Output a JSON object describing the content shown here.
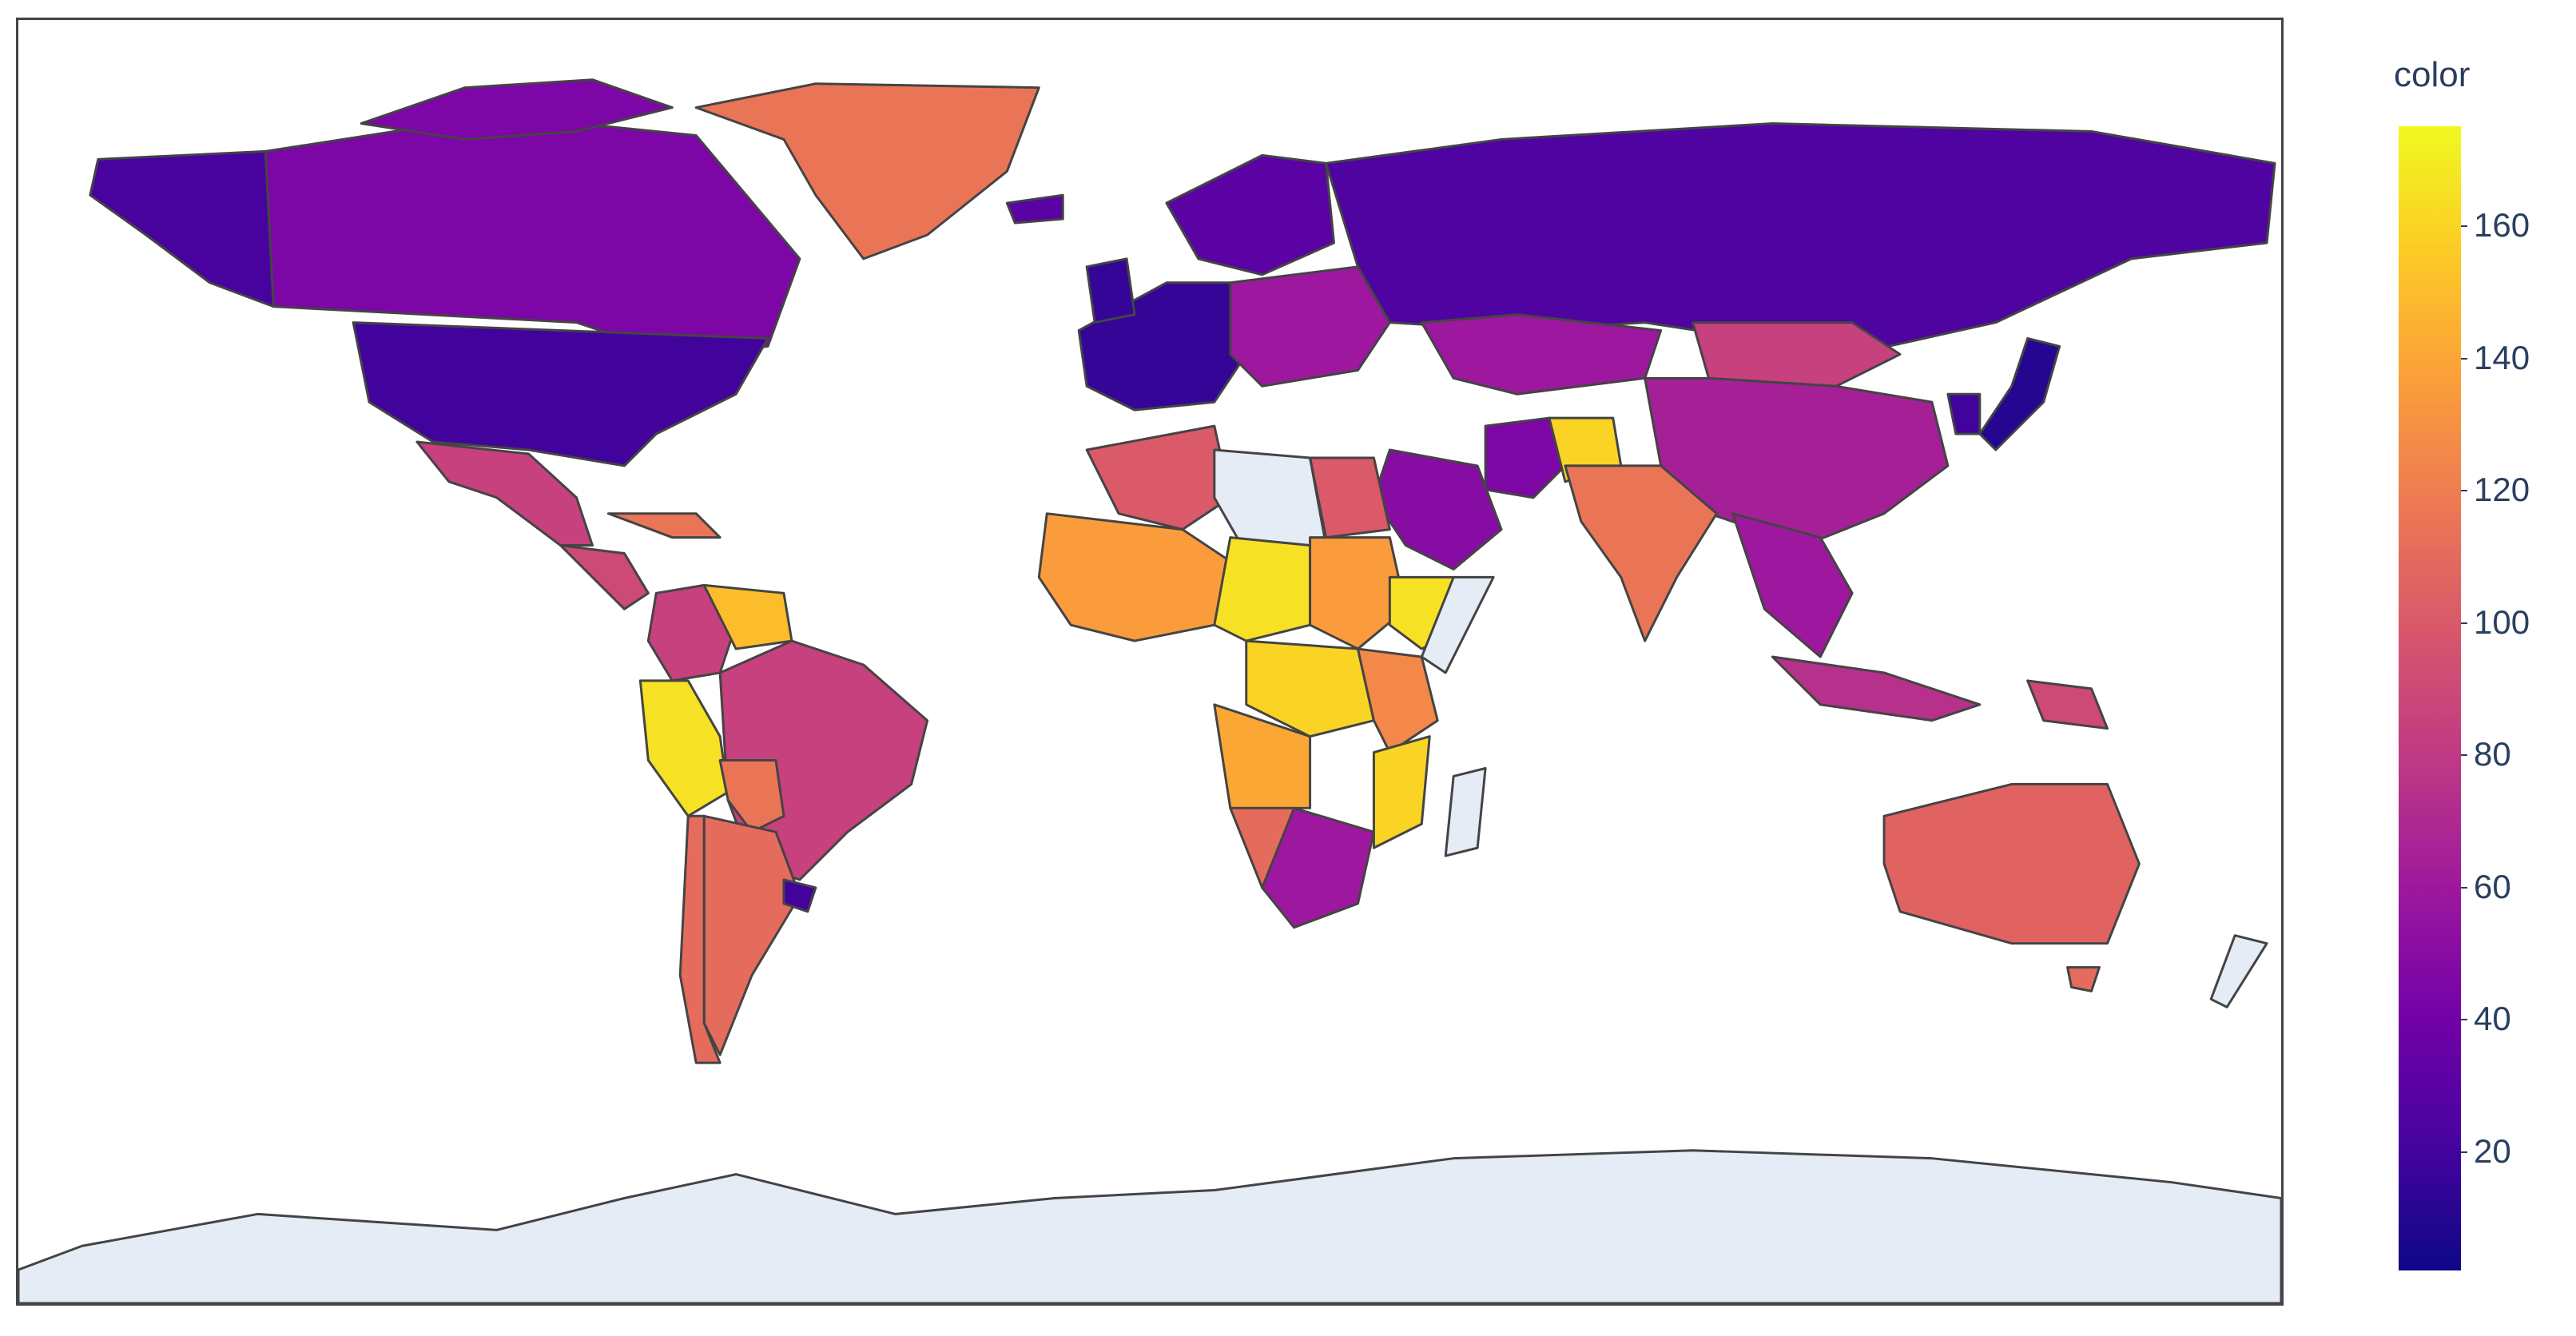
{
  "colorbar": {
    "title": "color",
    "ticks": [
      "160",
      "140",
      "120",
      "100",
      "80",
      "60",
      "40",
      "20"
    ],
    "tick_values": [
      160,
      140,
      120,
      100,
      80,
      60,
      40,
      20
    ],
    "range": [
      2,
      175
    ],
    "colorscale": [
      "#0d0887",
      "#46039f",
      "#7201a8",
      "#9c179e",
      "#bd3786",
      "#d8576b",
      "#ed7953",
      "#fb9f3a",
      "#fdca26",
      "#f0f921"
    ]
  },
  "map": {
    "type": "choropleth",
    "projection": "equirectangular",
    "no_data_color": "#e5ecf6",
    "border_color": "#444444",
    "regions": [
      {
        "name": "United States",
        "value": 20
      },
      {
        "name": "Canada",
        "value": 45
      },
      {
        "name": "Alaska",
        "value": 22
      },
      {
        "name": "Greenland",
        "value": 115
      },
      {
        "name": "Mexico",
        "value": 85
      },
      {
        "name": "Central America",
        "value": 90
      },
      {
        "name": "Colombia",
        "value": 85
      },
      {
        "name": "Venezuela",
        "value": 150
      },
      {
        "name": "Peru",
        "value": 165
      },
      {
        "name": "Brazil",
        "value": 85
      },
      {
        "name": "Bolivia",
        "value": 115
      },
      {
        "name": "Argentina",
        "value": 110
      },
      {
        "name": "Chile",
        "value": 110
      },
      {
        "name": "Uruguay",
        "value": 20
      },
      {
        "name": "Western Europe",
        "value": 15
      },
      {
        "name": "Eastern Europe",
        "value": 60
      },
      {
        "name": "Russia",
        "value": 25
      },
      {
        "name": "Kazakhstan",
        "value": 60
      },
      {
        "name": "Mongolia",
        "value": 85
      },
      {
        "name": "China",
        "value": 65
      },
      {
        "name": "Japan",
        "value": 10
      },
      {
        "name": "Korea",
        "value": 20
      },
      {
        "name": "India",
        "value": 115
      },
      {
        "name": "Afghanistan",
        "value": 160
      },
      {
        "name": "Iran",
        "value": 45
      },
      {
        "name": "Saudi Arabia",
        "value": 50
      },
      {
        "name": "Southeast Asia",
        "value": 60
      },
      {
        "name": "Indonesia",
        "value": 75
      },
      {
        "name": "Papua New Guinea",
        "value": 90
      },
      {
        "name": "Australia",
        "value": 105
      },
      {
        "name": "Algeria",
        "value": 100
      },
      {
        "name": "Libya",
        "value": null
      },
      {
        "name": "Egypt",
        "value": 100
      },
      {
        "name": "West Africa",
        "value": 135
      },
      {
        "name": "Chad",
        "value": 165
      },
      {
        "name": "Sudan",
        "value": 135
      },
      {
        "name": "Ethiopia",
        "value": 165
      },
      {
        "name": "Central Africa",
        "value": 160
      },
      {
        "name": "East Africa",
        "value": 125
      },
      {
        "name": "Angola",
        "value": 140
      },
      {
        "name": "Namibia",
        "value": 110
      },
      {
        "name": "South Africa",
        "value": 60
      },
      {
        "name": "Mozambique",
        "value": 160
      },
      {
        "name": "Madagascar",
        "value": null
      },
      {
        "name": "New Zealand",
        "value": null
      },
      {
        "name": "Antarctica",
        "value": null
      }
    ]
  }
}
